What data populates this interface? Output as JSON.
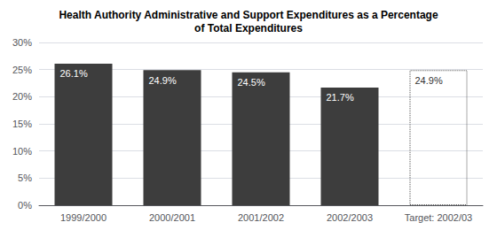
{
  "chart_data": {
    "type": "bar",
    "title": "Health Authority Administrative and Support Expenditures as a Percentage\nof Total Expenditures",
    "categories": [
      "1999/2000",
      "2000/2001",
      "2001/2002",
      "2002/2003",
      "Target: 2002/03"
    ],
    "series": [
      {
        "color": "#3d3d3d",
        "values": [
          26.1,
          24.9,
          24.5,
          21.7,
          null
        ],
        "value_labels": [
          "26.1%",
          "24.9%",
          "24.5%",
          "21.7%",
          null
        ]
      },
      {
        "color": "#555555",
        "line_style": "dotted",
        "values": [
          null,
          null,
          null,
          null,
          24.9
        ],
        "value_labels": [
          null,
          null,
          null,
          null,
          "24.9%"
        ]
      }
    ],
    "data_labels": true,
    "ylim": [
      0,
      30
    ],
    "yticks": [
      {
        "value": 0,
        "label": "0%"
      },
      {
        "value": 5,
        "label": "5%"
      },
      {
        "value": 10,
        "label": "10%"
      },
      {
        "value": 15,
        "label": "15%"
      },
      {
        "value": 20,
        "label": "20%"
      },
      {
        "value": 25,
        "label": "25%"
      },
      {
        "value": 30,
        "label": "30%"
      }
    ],
    "grid": true
  }
}
